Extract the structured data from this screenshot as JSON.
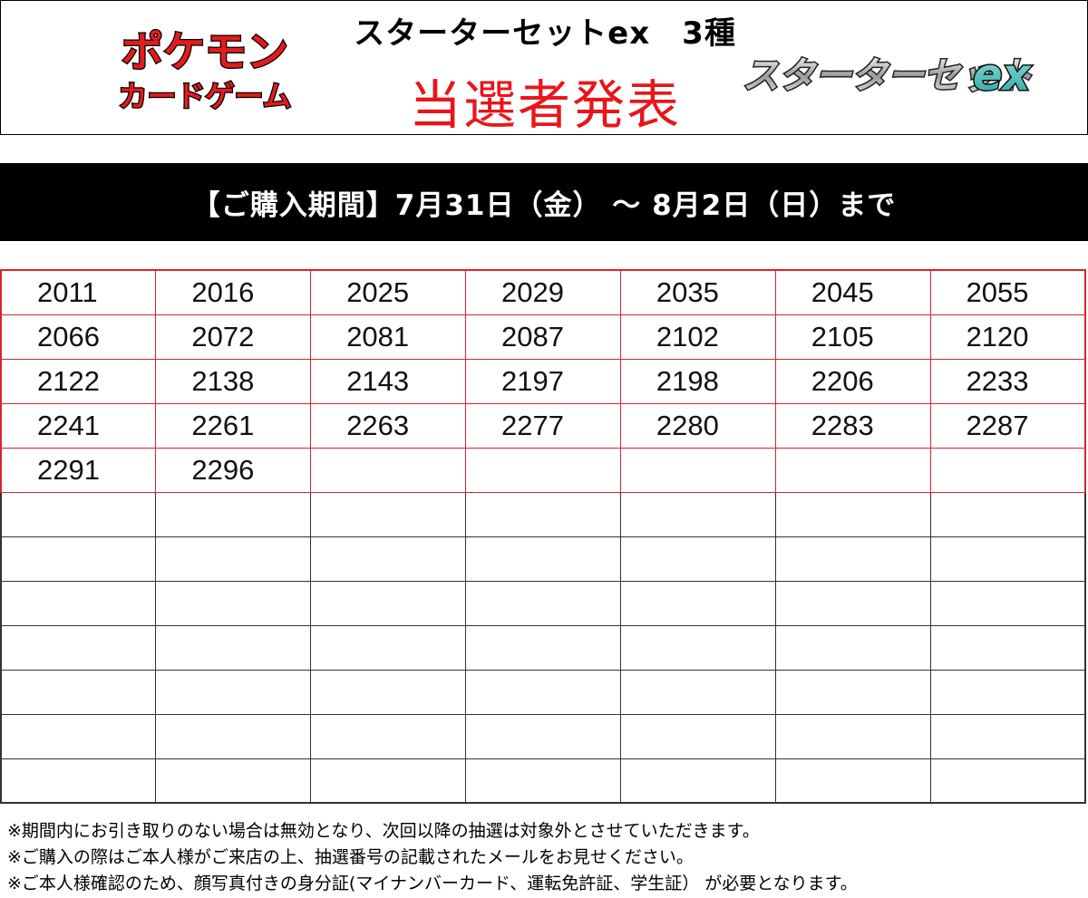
{
  "header": {
    "title": "スターターセットex　3種",
    "subtitle": "当選者発表",
    "logo_left_line1": "ポケモン",
    "logo_left_line2": "カードゲーム",
    "logo_right_text": "スターターセット",
    "logo_right_ex": "ex",
    "colors": {
      "subtitle": "#e8161b",
      "logo_red": "#e21c1c"
    }
  },
  "period": "【ご購入期間】7月31日（金） ～ 8月2日（日）まで",
  "numbers": [
    [
      "2011",
      "2016",
      "2025",
      "2029",
      "2035",
      "2045",
      "2055"
    ],
    [
      "2066",
      "2072",
      "2081",
      "2087",
      "2102",
      "2105",
      "2120"
    ],
    [
      "2122",
      "2138",
      "2143",
      "2197",
      "2198",
      "2206",
      "2233"
    ],
    [
      "2241",
      "2261",
      "2263",
      "2277",
      "2280",
      "2283",
      "2287"
    ],
    [
      "2291",
      "2296",
      "",
      "",
      "",
      "",
      ""
    ],
    [
      "",
      "",
      "",
      "",
      "",
      "",
      ""
    ],
    [
      "",
      "",
      "",
      "",
      "",
      "",
      ""
    ],
    [
      "",
      "",
      "",
      "",
      "",
      "",
      ""
    ],
    [
      "",
      "",
      "",
      "",
      "",
      "",
      ""
    ],
    [
      "",
      "",
      "",
      "",
      "",
      "",
      ""
    ],
    [
      "",
      "",
      "",
      "",
      "",
      "",
      ""
    ],
    [
      "",
      "",
      "",
      "",
      "",
      "",
      ""
    ]
  ],
  "notes": [
    "※期間内にお引き取りのない場合は無効となり、次回以降の抽選は対象外とさせていただきます。",
    "※ご購入の際はご本人様がご来店の上、抽選番号の記載されたメールをお見せください。",
    "※ご本人様確認のため、顔写真付きの身分証(マイナンバーカード、運転免許証、学生証） が必要となります。"
  ]
}
